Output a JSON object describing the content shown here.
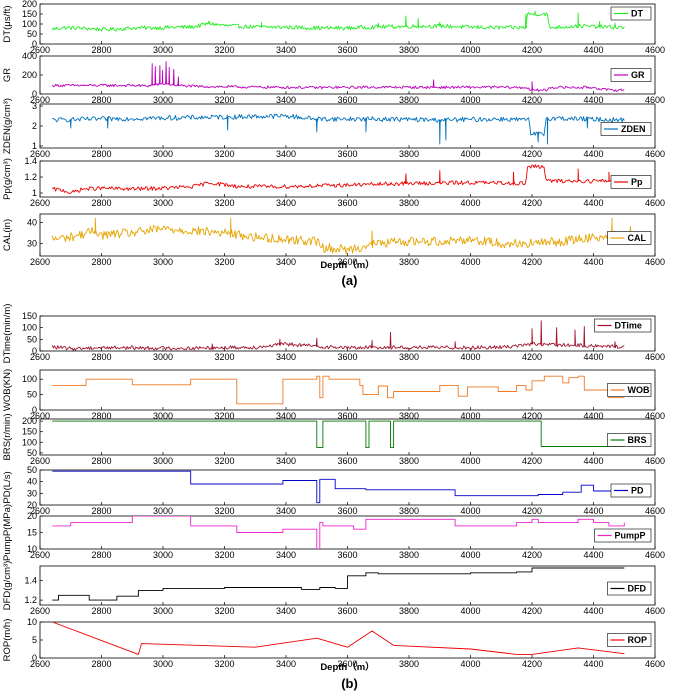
{
  "figure": {
    "caption_a": "(a)",
    "caption_b": "(b)",
    "xlabel": "Depth（m）",
    "xlim": [
      2600,
      4600
    ],
    "xticks": [
      2600,
      2800,
      3000,
      3200,
      3400,
      3600,
      3800,
      4000,
      4200,
      4400,
      4600
    ]
  },
  "chart_data": [
    {
      "type": "line",
      "id": "dt",
      "group": "a",
      "ylabel": "DT(μs/ft)",
      "legend": "DT",
      "color": "#22ee22",
      "ylim": [
        0,
        200
      ],
      "yticks": [
        0,
        50,
        100,
        150,
        200
      ],
      "x_range": [
        2640,
        4500
      ],
      "profile": [
        [
          2640,
          75
        ],
        [
          2680,
          82
        ],
        [
          2750,
          78
        ],
        [
          2820,
          72
        ],
        [
          2900,
          80
        ],
        [
          3000,
          82
        ],
        [
          3100,
          86
        ],
        [
          3150,
          103
        ],
        [
          3200,
          92
        ],
        [
          3300,
          85
        ],
        [
          3400,
          84
        ],
        [
          3500,
          80
        ],
        [
          3600,
          80
        ],
        [
          3700,
          86
        ],
        [
          3800,
          88
        ],
        [
          3900,
          90
        ],
        [
          4000,
          84
        ],
        [
          4100,
          82
        ],
        [
          4180,
          82
        ],
        [
          4185,
          150
        ],
        [
          4250,
          150
        ],
        [
          4255,
          82
        ],
        [
          4350,
          90
        ],
        [
          4500,
          82
        ]
      ],
      "spikes": [
        [
          3150,
          115
        ],
        [
          3320,
          108
        ],
        [
          3700,
          104
        ],
        [
          3790,
          140
        ],
        [
          3830,
          128
        ],
        [
          3900,
          108
        ],
        [
          4180,
          150
        ],
        [
          4210,
          165
        ],
        [
          4350,
          155
        ],
        [
          4420,
          112
        ],
        [
          4470,
          104
        ]
      ],
      "noise": 10
    },
    {
      "type": "line",
      "id": "gr",
      "group": "a",
      "ylabel": "GR",
      "legend": "GR",
      "color": "#bb00bb",
      "ylim": [
        0,
        400
      ],
      "yticks": [
        0,
        200,
        400
      ],
      "x_range": [
        2640,
        4500
      ],
      "profile": [
        [
          2640,
          90
        ],
        [
          2700,
          90
        ],
        [
          2900,
          90
        ],
        [
          2950,
          85
        ],
        [
          3000,
          110
        ],
        [
          3050,
          90
        ],
        [
          3100,
          80
        ],
        [
          3300,
          72
        ],
        [
          3500,
          68
        ],
        [
          3700,
          72
        ],
        [
          3900,
          70
        ],
        [
          4100,
          72
        ],
        [
          4190,
          65
        ],
        [
          4195,
          40
        ],
        [
          4250,
          40
        ],
        [
          4255,
          70
        ],
        [
          4400,
          68
        ],
        [
          4450,
          40
        ],
        [
          4500,
          42
        ]
      ],
      "spikes": [
        [
          2965,
          320
        ],
        [
          2975,
          290
        ],
        [
          2990,
          300
        ],
        [
          2998,
          250
        ],
        [
          3010,
          340
        ],
        [
          3020,
          280
        ],
        [
          3035,
          260
        ],
        [
          3050,
          180
        ],
        [
          3880,
          150
        ],
        [
          4200,
          130
        ]
      ],
      "noise": 14
    },
    {
      "type": "line",
      "id": "zden",
      "group": "a",
      "ylabel": "ZDEN(g/cm³)",
      "legend": "ZDEN",
      "color": "#0072bd",
      "ylim": [
        0.9,
        3.1
      ],
      "yticks": [
        1,
        2,
        3
      ],
      "x_range": [
        2640,
        4500
      ],
      "profile": [
        [
          2640,
          2.3
        ],
        [
          2800,
          2.35
        ],
        [
          3000,
          2.4
        ],
        [
          3200,
          2.45
        ],
        [
          3400,
          2.5
        ],
        [
          3500,
          2.35
        ],
        [
          3700,
          2.35
        ],
        [
          3900,
          2.3
        ],
        [
          4100,
          2.35
        ],
        [
          4190,
          2.3
        ],
        [
          4195,
          1.6
        ],
        [
          4240,
          1.6
        ],
        [
          4245,
          2.4
        ],
        [
          4500,
          2.3
        ]
      ],
      "spikes": [
        [
          2700,
          1.9
        ],
        [
          2820,
          1.9
        ],
        [
          3210,
          1.8
        ],
        [
          3500,
          1.7
        ],
        [
          3660,
          1.7
        ],
        [
          3900,
          1.1
        ],
        [
          3920,
          1.3
        ],
        [
          4220,
          1.2
        ],
        [
          4250,
          1.1
        ],
        [
          4380,
          1.9
        ]
      ],
      "noise": 0.12
    },
    {
      "type": "line",
      "id": "pp",
      "group": "a",
      "ylabel": "Pp(g/cm³)",
      "legend": "Pp",
      "color": "#ee0000",
      "ylim": [
        0.95,
        1.4
      ],
      "yticks": [
        1,
        1.2,
        1.4
      ],
      "x_range": [
        2640,
        4500
      ],
      "profile": [
        [
          2640,
          1.05
        ],
        [
          2680,
          1.03
        ],
        [
          2700,
          1.0
        ],
        [
          2740,
          1.05
        ],
        [
          2800,
          1.06
        ],
        [
          2900,
          1.05
        ],
        [
          3000,
          1.06
        ],
        [
          3100,
          1.08
        ],
        [
          3150,
          1.13
        ],
        [
          3250,
          1.08
        ],
        [
          3400,
          1.08
        ],
        [
          3600,
          1.1
        ],
        [
          3800,
          1.12
        ],
        [
          4000,
          1.13
        ],
        [
          4180,
          1.12
        ],
        [
          4185,
          1.33
        ],
        [
          4240,
          1.33
        ],
        [
          4245,
          1.15
        ],
        [
          4500,
          1.15
        ]
      ],
      "spikes": [
        [
          3900,
          1.28
        ],
        [
          4350,
          1.3
        ],
        [
          4450,
          1.26
        ],
        [
          3790,
          1.24
        ],
        [
          4140,
          1.26
        ]
      ],
      "noise": 0.025
    },
    {
      "type": "line",
      "id": "cal",
      "group": "a",
      "ylabel": "CAL(in)",
      "legend": "CAL",
      "color": "#e6a400",
      "ylim": [
        24,
        44
      ],
      "yticks": [
        30,
        40
      ],
      "x_range": [
        2640,
        4500
      ],
      "profile": [
        [
          2640,
          32
        ],
        [
          2700,
          33
        ],
        [
          2780,
          36
        ],
        [
          2800,
          34
        ],
        [
          2900,
          35
        ],
        [
          3000,
          37
        ],
        [
          3100,
          36
        ],
        [
          3200,
          35
        ],
        [
          3300,
          33
        ],
        [
          3400,
          32
        ],
        [
          3500,
          31
        ],
        [
          3520,
          28
        ],
        [
          3600,
          27
        ],
        [
          3700,
          30
        ],
        [
          3800,
          31
        ],
        [
          3900,
          31
        ],
        [
          4000,
          32
        ],
        [
          4100,
          30
        ],
        [
          4200,
          30
        ],
        [
          4300,
          31
        ],
        [
          4400,
          33
        ],
        [
          4500,
          34
        ]
      ],
      "spikes": [
        [
          2780,
          42
        ],
        [
          3220,
          42
        ],
        [
          3680,
          36
        ],
        [
          4460,
          42
        ],
        [
          4520,
          38
        ]
      ],
      "noise": 2.2
    },
    {
      "type": "line",
      "id": "dtime",
      "group": "b",
      "ylabel": "DTime(min/m)",
      "legend": "DTime",
      "color": "#a0142c",
      "ylim": [
        0,
        150
      ],
      "yticks": [
        0,
        50,
        100,
        150
      ],
      "x_range": [
        2640,
        4500
      ],
      "profile": [
        [
          2640,
          18
        ],
        [
          2700,
          10
        ],
        [
          2800,
          15
        ],
        [
          2900,
          14
        ],
        [
          3000,
          12
        ],
        [
          3100,
          12
        ],
        [
          3200,
          15
        ],
        [
          3300,
          16
        ],
        [
          3400,
          30
        ],
        [
          3500,
          20
        ],
        [
          3600,
          14
        ],
        [
          3700,
          16
        ],
        [
          3800,
          15
        ],
        [
          3900,
          15
        ],
        [
          4000,
          15
        ],
        [
          4100,
          16
        ],
        [
          4200,
          30
        ],
        [
          4300,
          25
        ],
        [
          4400,
          22
        ],
        [
          4500,
          18
        ]
      ],
      "spikes": [
        [
          3160,
          30
        ],
        [
          3380,
          50
        ],
        [
          3500,
          55
        ],
        [
          3680,
          45
        ],
        [
          3740,
          80
        ],
        [
          3950,
          40
        ],
        [
          4200,
          95
        ],
        [
          4230,
          130
        ],
        [
          4280,
          100
        ],
        [
          4340,
          90
        ],
        [
          4370,
          105
        ],
        [
          4470,
          40
        ]
      ],
      "noise": 8
    },
    {
      "type": "step",
      "id": "wob",
      "group": "b",
      "ylabel": "WOB(KN)",
      "legend": "WOB",
      "color": "#f07820",
      "ylim": [
        0,
        130
      ],
      "yticks": [
        0,
        50,
        100
      ],
      "x": [
        2640,
        2750,
        2900,
        3090,
        3240,
        3390,
        3500,
        3510,
        3520,
        3540,
        3640,
        3650,
        3700,
        3730,
        3750,
        3900,
        3960,
        3990,
        4090,
        4150,
        4180,
        4200,
        4240,
        4300,
        4320,
        4350,
        4370,
        4450,
        4500
      ],
      "y": [
        80,
        100,
        82,
        100,
        20,
        100,
        110,
        40,
        110,
        100,
        80,
        50,
        78,
        40,
        60,
        80,
        45,
        75,
        60,
        80,
        65,
        95,
        110,
        88,
        105,
        110,
        65,
        40,
        40
      ]
    },
    {
      "type": "step",
      "id": "brs",
      "group": "b",
      "ylabel": "BRS(r/min)",
      "legend": "BRS",
      "color": "#007a00",
      "ylim": [
        40,
        210
      ],
      "yticks": [
        50,
        100,
        150,
        200
      ],
      "x": [
        2640,
        3500,
        3520,
        3660,
        3670,
        3740,
        3750,
        4230,
        4500
      ],
      "y": [
        200,
        75,
        200,
        75,
        200,
        75,
        200,
        80,
        80
      ]
    },
    {
      "type": "step",
      "id": "pd",
      "group": "b",
      "ylabel": "PD(L/s)",
      "legend": "PD",
      "color": "#0000cc",
      "ylim": [
        20,
        50
      ],
      "yticks": [
        20,
        30,
        40,
        50
      ],
      "x": [
        2640,
        3090,
        3390,
        3500,
        3510,
        3520,
        3560,
        3660,
        3950,
        4200,
        4220,
        4300,
        4360,
        4400,
        4500
      ],
      "y": [
        49,
        38,
        41,
        22,
        42,
        42,
        34,
        33,
        28,
        28,
        29,
        31,
        37,
        32,
        32
      ]
    },
    {
      "type": "step",
      "id": "pumpp",
      "group": "b",
      "ylabel": "PumpP(MPa)",
      "legend": "PumpP",
      "color": "#ee22cc",
      "ylim": [
        10,
        20
      ],
      "yticks": [
        10,
        15,
        20
      ],
      "x": [
        2640,
        2700,
        2900,
        3090,
        3240,
        3390,
        3500,
        3510,
        3520,
        3560,
        3620,
        3660,
        3900,
        3950,
        4150,
        4180,
        4200,
        4220,
        4300,
        4350,
        4400,
        4450,
        4500
      ],
      "y": [
        17,
        18,
        20,
        17,
        15,
        16,
        10,
        18,
        17,
        17,
        16,
        19,
        19,
        17,
        18,
        18,
        19,
        18,
        18,
        19,
        18,
        17,
        18
      ]
    },
    {
      "type": "step",
      "id": "dfd",
      "group": "b",
      "ylabel": "DFD(g/cm³)",
      "legend": "DFD",
      "color": "#000000",
      "ylim": [
        1.15,
        1.55
      ],
      "yticks": [
        1.2,
        1.4
      ],
      "x_range": [
        2640,
        4500
      ],
      "x": [
        2640,
        2660,
        2760,
        2850,
        2920,
        3000,
        3200,
        3400,
        3450,
        3510,
        3560,
        3600,
        3660,
        3700,
        3900,
        4000,
        4150,
        4200,
        4230,
        4500
      ],
      "y": [
        1.2,
        1.25,
        1.2,
        1.24,
        1.3,
        1.32,
        1.33,
        1.33,
        1.31,
        1.33,
        1.32,
        1.45,
        1.48,
        1.47,
        1.47,
        1.48,
        1.49,
        1.53,
        1.53,
        1.53
      ]
    },
    {
      "type": "line",
      "id": "rop",
      "group": "b",
      "ylabel": "ROP(m/h)",
      "legend": "ROP",
      "color": "#ee0000",
      "ylim": [
        0,
        10
      ],
      "yticks": [
        0,
        5,
        10
      ],
      "x": [
        2640,
        2920,
        2930,
        3300,
        3500,
        3600,
        3680,
        3750,
        4000,
        4150,
        4200,
        4350,
        4500
      ],
      "y": [
        10,
        1,
        4,
        3,
        5.5,
        3,
        7.5,
        3.5,
        2.5,
        1,
        1,
        2.8,
        1.2
      ]
    }
  ]
}
